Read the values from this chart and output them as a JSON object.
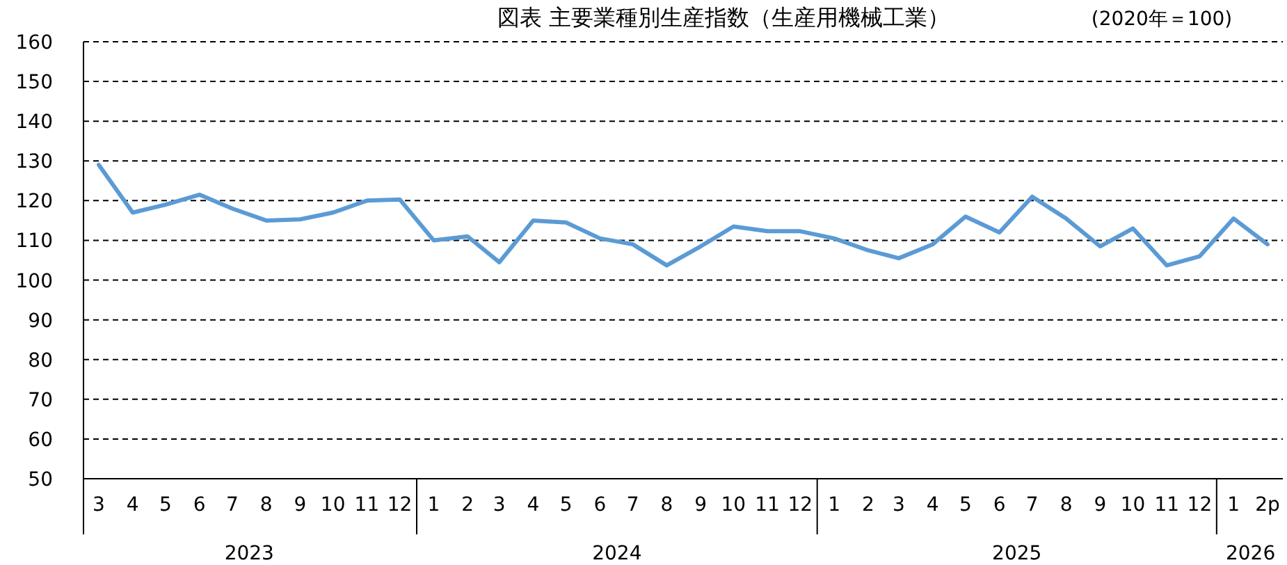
{
  "chart_data": {
    "type": "line",
    "title": "図表 主要業種別生産指数（生産用機械工業）",
    "subtitle": "(2020年＝100)",
    "x": [
      "2023-03",
      "2023-04",
      "2023-05",
      "2023-06",
      "2023-07",
      "2023-08",
      "2023-09",
      "2023-10",
      "2023-11",
      "2023-12",
      "2024-01",
      "2024-02",
      "2024-03",
      "2024-04",
      "2024-05",
      "2024-06",
      "2024-07",
      "2024-08",
      "2024-09",
      "2024-10",
      "2024-11",
      "2024-12",
      "2025-01",
      "2025-02",
      "2025-03",
      "2025-04",
      "2025-05",
      "2025-06",
      "2025-07",
      "2025-08",
      "2025-09",
      "2025-10",
      "2025-11",
      "2025-12",
      "2026-01",
      "2026-02"
    ],
    "xticks": [
      {
        "value": "2023-03",
        "label": "3"
      },
      {
        "value": "2023-04",
        "label": "4"
      },
      {
        "value": "2023-05",
        "label": "5"
      },
      {
        "value": "2023-06",
        "label": "6"
      },
      {
        "value": "2023-07",
        "label": "7"
      },
      {
        "value": "2023-08",
        "label": "8"
      },
      {
        "value": "2023-09",
        "label": "9"
      },
      {
        "value": "2023-10",
        "label": "10"
      },
      {
        "value": "2023-11",
        "label": "11"
      },
      {
        "value": "2023-12",
        "label": "12"
      },
      {
        "value": "2024-01",
        "label": "1"
      },
      {
        "value": "2024-02",
        "label": "2"
      },
      {
        "value": "2024-03",
        "label": "3"
      },
      {
        "value": "2024-04",
        "label": "4"
      },
      {
        "value": "2024-05",
        "label": "5"
      },
      {
        "value": "2024-06",
        "label": "6"
      },
      {
        "value": "2024-07",
        "label": "7"
      },
      {
        "value": "2024-08",
        "label": "8"
      },
      {
        "value": "2024-09",
        "label": "9"
      },
      {
        "value": "2024-10",
        "label": "10"
      },
      {
        "value": "2024-11",
        "label": "11"
      },
      {
        "value": "2024-12",
        "label": "12"
      },
      {
        "value": "2025-01",
        "label": "1"
      },
      {
        "value": "2025-02",
        "label": "2"
      },
      {
        "value": "2025-03",
        "label": "3"
      },
      {
        "value": "2025-04",
        "label": "4"
      },
      {
        "value": "2025-05",
        "label": "5"
      },
      {
        "value": "2025-06",
        "label": "6"
      },
      {
        "value": "2025-07",
        "label": "7"
      },
      {
        "value": "2025-08",
        "label": "8"
      },
      {
        "value": "2025-09",
        "label": "9"
      },
      {
        "value": "2025-10",
        "label": "10"
      },
      {
        "value": "2025-11",
        "label": "11"
      },
      {
        "value": "2025-12",
        "label": "12"
      },
      {
        "value": "2026-01",
        "label": "1"
      },
      {
        "value": "2026-02",
        "label": "2p"
      }
    ],
    "annotations": [
      "2023",
      "2024",
      "2025",
      "2026"
    ],
    "series": [
      {
        "color": "#5b9bd5",
        "values": [
          129,
          117,
          119,
          121.5,
          118,
          115,
          115.3,
          117,
          120,
          120.3,
          110,
          111,
          104.5,
          115,
          114.5,
          110.5,
          109,
          103.7,
          108.5,
          113.5,
          112.3,
          112.3,
          110.5,
          107.5,
          105.5,
          109,
          116,
          112,
          121,
          115.5,
          108.5,
          113,
          103.7,
          106,
          115.5,
          109
        ]
      }
    ],
    "ylim": [
      50,
      160
    ],
    "yticks": [
      50,
      60,
      70,
      80,
      90,
      100,
      110,
      120,
      130,
      140,
      150,
      160
    ],
    "xlim": [
      "2023-02-15",
      "2026-02-15"
    ],
    "grid": "y",
    "line_style": "solid",
    "marker": "none"
  }
}
